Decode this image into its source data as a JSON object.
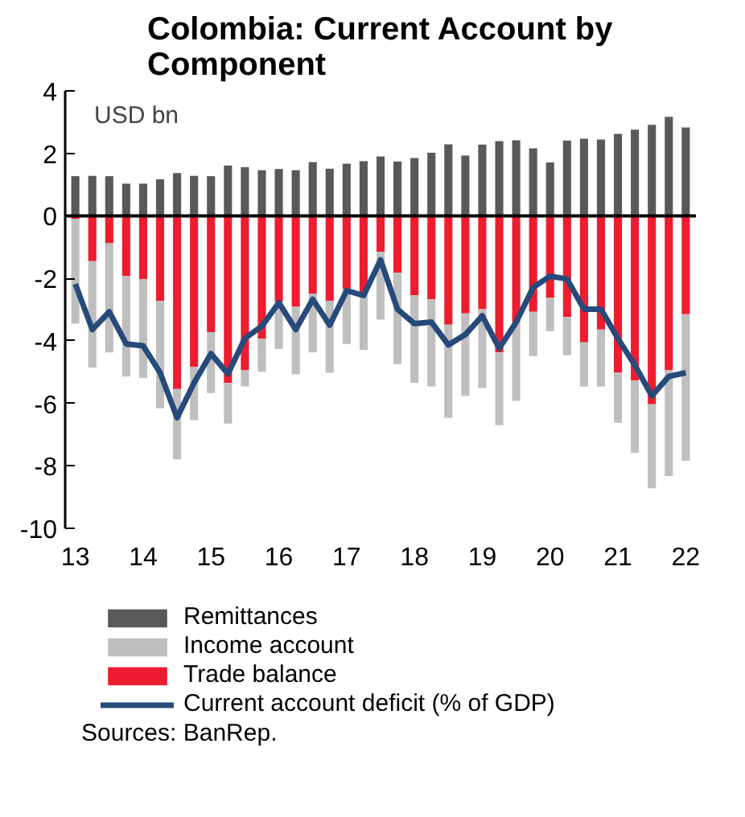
{
  "chart_data": {
    "type": "bar",
    "title": "Colombia: Current Account by Component",
    "ylabel": "USD bn",
    "stacked": true,
    "x": [
      13,
      13.25,
      13.5,
      13.75,
      14,
      14.25,
      14.5,
      14.75,
      15,
      15.25,
      15.5,
      15.75,
      16,
      16.25,
      16.5,
      16.75,
      17,
      17.25,
      17.5,
      17.75,
      18,
      18.25,
      18.5,
      18.75,
      19,
      19.25,
      19.5,
      19.75,
      20,
      20.25,
      20.5,
      20.75,
      21,
      21.25,
      21.5,
      21.75,
      22
    ],
    "series": [
      {
        "name": "Trade balance",
        "color": "#ee1c2e",
        "values": [
          -0.1,
          -1.45,
          -0.88,
          -1.93,
          -2.02,
          -2.72,
          -5.54,
          -4.83,
          -3.72,
          -5.35,
          -4.94,
          -3.93,
          -2.75,
          -2.91,
          -2.5,
          -2.72,
          -2.34,
          -2.5,
          -1.15,
          -1.82,
          -2.54,
          -2.67,
          -3.48,
          -3.12,
          -2.99,
          -4.37,
          -3.4,
          -3.07,
          -2.63,
          -3.24,
          -4.05,
          -3.64,
          -5.02,
          -5.27,
          -6.03,
          -4.94,
          -3.15
        ]
      },
      {
        "name": "Income account",
        "color": "#bfbfbf",
        "values": [
          -3.35,
          -3.41,
          -3.49,
          -3.21,
          -3.17,
          -3.44,
          -2.25,
          -1.71,
          -1.95,
          -1.3,
          -0.52,
          -1.06,
          -1.51,
          -2.16,
          -1.87,
          -2.3,
          -1.76,
          -1.79,
          -2.17,
          -2.93,
          -2.81,
          -2.79,
          -2.98,
          -2.64,
          -2.52,
          -2.33,
          -2.52,
          -1.42,
          -1.06,
          -1.22,
          -1.41,
          -1.82,
          -1.6,
          -2.31,
          -2.69,
          -3.39,
          -4.69
        ]
      },
      {
        "name": "Remittances",
        "color": "#595959",
        "values": [
          1.27,
          1.28,
          1.27,
          1.03,
          1.03,
          1.17,
          1.37,
          1.28,
          1.27,
          1.61,
          1.56,
          1.46,
          1.5,
          1.46,
          1.72,
          1.51,
          1.67,
          1.75,
          1.9,
          1.74,
          1.85,
          2.02,
          2.29,
          1.93,
          2.28,
          2.39,
          2.42,
          2.16,
          1.71,
          2.41,
          2.47,
          2.44,
          2.62,
          2.76,
          2.91,
          3.17,
          2.83
        ]
      },
      {
        "name": "Current account deficit (% of GDP)",
        "type": "line",
        "color": "#264a7a",
        "values": [
          -2.18,
          -3.64,
          -3.07,
          -4.1,
          -4.16,
          -5.02,
          -6.46,
          -5.35,
          -4.41,
          -5.06,
          -3.92,
          -3.53,
          -2.78,
          -3.64,
          -2.67,
          -3.5,
          -2.39,
          -2.55,
          -1.41,
          -2.99,
          -3.45,
          -3.4,
          -4.13,
          -3.8,
          -3.2,
          -4.24,
          -3.4,
          -2.29,
          -1.93,
          -2.02,
          -2.99,
          -2.99,
          -3.93,
          -4.78,
          -5.76,
          -5.14,
          -5.02
        ]
      }
    ],
    "xlim": [
      12.85,
      22.15
    ],
    "xticks": [
      13,
      14,
      15,
      16,
      17,
      18,
      19,
      20,
      21,
      22
    ],
    "ylim": [
      -10,
      4
    ],
    "yticks": [
      -10,
      -8,
      -6,
      -4,
      -2,
      0,
      2,
      4
    ],
    "ref_lines": [
      {
        "axis": "y",
        "value": 0,
        "color": "#000000"
      }
    ],
    "grid": false,
    "legend": "bottom",
    "line_style": "solid",
    "marker": "none",
    "annotations": [
      "Sources: BanRep."
    ]
  }
}
